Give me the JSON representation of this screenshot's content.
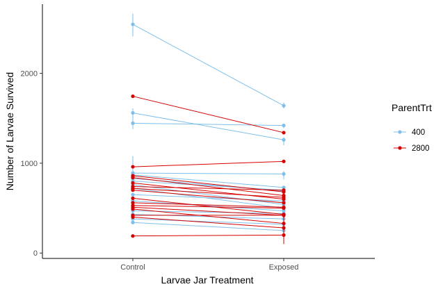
{
  "chart_data": {
    "type": "line",
    "title": "",
    "xlabel": "Larvae Jar Treatment",
    "ylabel": "Number of Larvae Survived",
    "categories": [
      "Control",
      "Exposed"
    ],
    "ylim": [
      -60,
      2770
    ],
    "yticks": [
      0,
      1000,
      2000
    ],
    "grid": false,
    "legend": {
      "title": "ParentTrt",
      "placement": "right",
      "entries": [
        "400",
        "2800"
      ]
    },
    "colors": {
      "400": "#7fbfea",
      "2800": "#d40000"
    },
    "series": [
      {
        "group": "400",
        "values": [
          2545,
          1640
        ],
        "error": [
          [
            2410,
            2665
          ],
          [
            1610,
            1675
          ]
        ]
      },
      {
        "group": "400",
        "values": [
          1560,
          1260
        ],
        "error": [
          [
            1460,
            1610
          ],
          [
            1200,
            1290
          ]
        ]
      },
      {
        "group": "400",
        "values": [
          1445,
          1420
        ],
        "error": [
          [
            1380,
            1490
          ],
          [
            1390,
            1440
          ]
        ]
      },
      {
        "group": "400",
        "values": [
          890,
          880
        ],
        "error": [
          [
            800,
            1080
          ],
          [
            820,
            910
          ]
        ]
      },
      {
        "group": "400",
        "values": [
          870,
          730
        ]
      },
      {
        "group": "400",
        "values": [
          830,
          690
        ]
      },
      {
        "group": "400",
        "values": [
          800,
          700
        ]
      },
      {
        "group": "400",
        "values": [
          760,
          540
        ]
      },
      {
        "group": "400",
        "values": [
          720,
          500
        ]
      },
      {
        "group": "400",
        "values": [
          650,
          580
        ]
      },
      {
        "group": "400",
        "values": [
          580,
          470
        ]
      },
      {
        "group": "400",
        "values": [
          470,
          440
        ]
      },
      {
        "group": "400",
        "values": [
          430,
          380
        ]
      },
      {
        "group": "400",
        "values": [
          380,
          320
        ]
      },
      {
        "group": "400",
        "values": [
          340,
          250
        ]
      },
      {
        "group": "2800",
        "values": [
          1745,
          1340
        ]
      },
      {
        "group": "2800",
        "values": [
          960,
          1020
        ]
      },
      {
        "group": "2800",
        "values": [
          860,
          680
        ]
      },
      {
        "group": "2800",
        "values": [
          840,
          640
        ]
      },
      {
        "group": "2800",
        "values": [
          780,
          600
        ]
      },
      {
        "group": "2800",
        "values": [
          740,
          700
        ]
      },
      {
        "group": "2800",
        "values": [
          720,
          620
        ]
      },
      {
        "group": "2800",
        "values": [
          700,
          560
        ]
      },
      {
        "group": "2800",
        "values": [
          610,
          430
        ]
      },
      {
        "group": "2800",
        "values": [
          560,
          510
        ]
      },
      {
        "group": "2800",
        "values": [
          530,
          500
        ]
      },
      {
        "group": "2800",
        "values": [
          510,
          420
        ]
      },
      {
        "group": "2800",
        "values": [
          490,
          330
        ]
      },
      {
        "group": "2800",
        "values": [
          420,
          420
        ]
      },
      {
        "group": "2800",
        "values": [
          400,
          280
        ],
        "error": [
          [
            380,
            420
          ],
          [
            100,
            420
          ]
        ]
      },
      {
        "group": "2800",
        "values": [
          190,
          200
        ]
      }
    ]
  }
}
